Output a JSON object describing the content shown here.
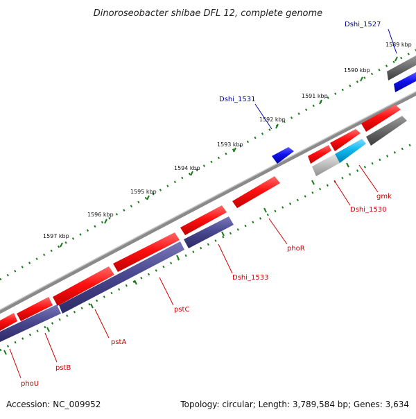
{
  "title": "Dinoroseobacter shibae DFL 12, complete genome",
  "footer": {
    "accession": "Accession: NC_009952",
    "summary": "Topology: circular; Length: 3,789,584 bp; Genes: 3,634"
  },
  "colors": {
    "forward_gene": "#ff1010",
    "reverse_gene": "#4a4890",
    "neighbor_gene": "#6e6e6e",
    "highlight_blue": "#1010ee",
    "highlight_cyan": "#10b8f0",
    "light_gray": "#c0c0c0",
    "backbone": "#8a8a8a",
    "tick": "#1a7a1a",
    "label_red": "#cc0000",
    "label_blue": "#0000aa"
  },
  "kbp_labels": [
    "1589 kbp",
    "1590 kbp",
    "1591 kbp",
    "1592 kbp",
    "1593 kbp",
    "1594 kbp",
    "1595 kbp",
    "1596 kbp",
    "1597 kbp"
  ],
  "gene_labels": [
    {
      "id": "Dshi_1527",
      "text": "Dshi_1527",
      "color": "label_blue"
    },
    {
      "id": "Dshi_1531",
      "text": "Dshi_1531",
      "color": "label_blue"
    },
    {
      "id": "gmk",
      "text": "gmk",
      "color": "label_red"
    },
    {
      "id": "Dshi_1530",
      "text": "Dshi_1530",
      "color": "label_red"
    },
    {
      "id": "phoR",
      "text": "phoR",
      "color": "label_red"
    },
    {
      "id": "Dshi_1533",
      "text": "Dshi_1533",
      "color": "label_red"
    },
    {
      "id": "pstC",
      "text": "pstC",
      "color": "label_red"
    },
    {
      "id": "pstA",
      "text": "pstA",
      "color": "label_red"
    },
    {
      "id": "pstB",
      "text": "pstB",
      "color": "label_red"
    },
    {
      "id": "phoU",
      "text": "phoU",
      "color": "label_red"
    }
  ]
}
